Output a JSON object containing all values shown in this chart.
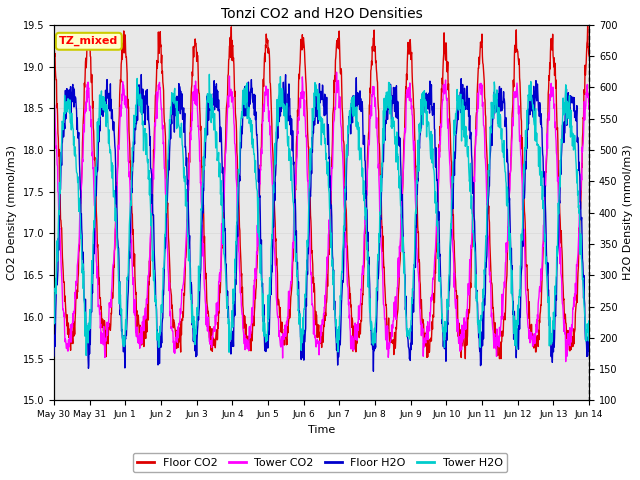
{
  "title": "Tonzi CO2 and H2O Densities",
  "xlabel": "Time",
  "ylabel_left": "CO2 Density (mmol/m3)",
  "ylabel_right": "H2O Density (mmol/m3)",
  "annotation": "TZ_mixed",
  "co2_ylim": [
    15.0,
    19.5
  ],
  "h2o_ylim": [
    100,
    700
  ],
  "co2_yticks": [
    15.0,
    15.5,
    16.0,
    16.5,
    17.0,
    17.5,
    18.0,
    18.5,
    19.0,
    19.5
  ],
  "h2o_yticks": [
    100,
    150,
    200,
    250,
    300,
    350,
    400,
    450,
    500,
    550,
    600,
    650,
    700
  ],
  "colors": {
    "floor_co2": "#DD0000",
    "tower_co2": "#FF00FF",
    "floor_h2o": "#0000CC",
    "tower_h2o": "#00CCCC"
  },
  "legend_labels": [
    "Floor CO2",
    "Tower CO2",
    "Floor H2O",
    "Tower H2O"
  ],
  "tick_positions": [
    0,
    1,
    2,
    3,
    4,
    5,
    6,
    7,
    8,
    9,
    10,
    11,
    12,
    13,
    14,
    15
  ],
  "tick_labels": [
    "May 30",
    "May 31",
    "Jun 1",
    "Jun 2",
    "Jun 3",
    "Jun 4",
    "Jun 5",
    "Jun 6",
    "Jun 7",
    "Jun 8",
    "Jun 9",
    "Jun 10",
    "Jun 11",
    "Jun 12",
    "Jun 13",
    "Jun 14"
  ],
  "n_points": 1440,
  "grid_color": "#DDDDDD",
  "bg_color": "#E8E8E8",
  "line_width": 1.0
}
